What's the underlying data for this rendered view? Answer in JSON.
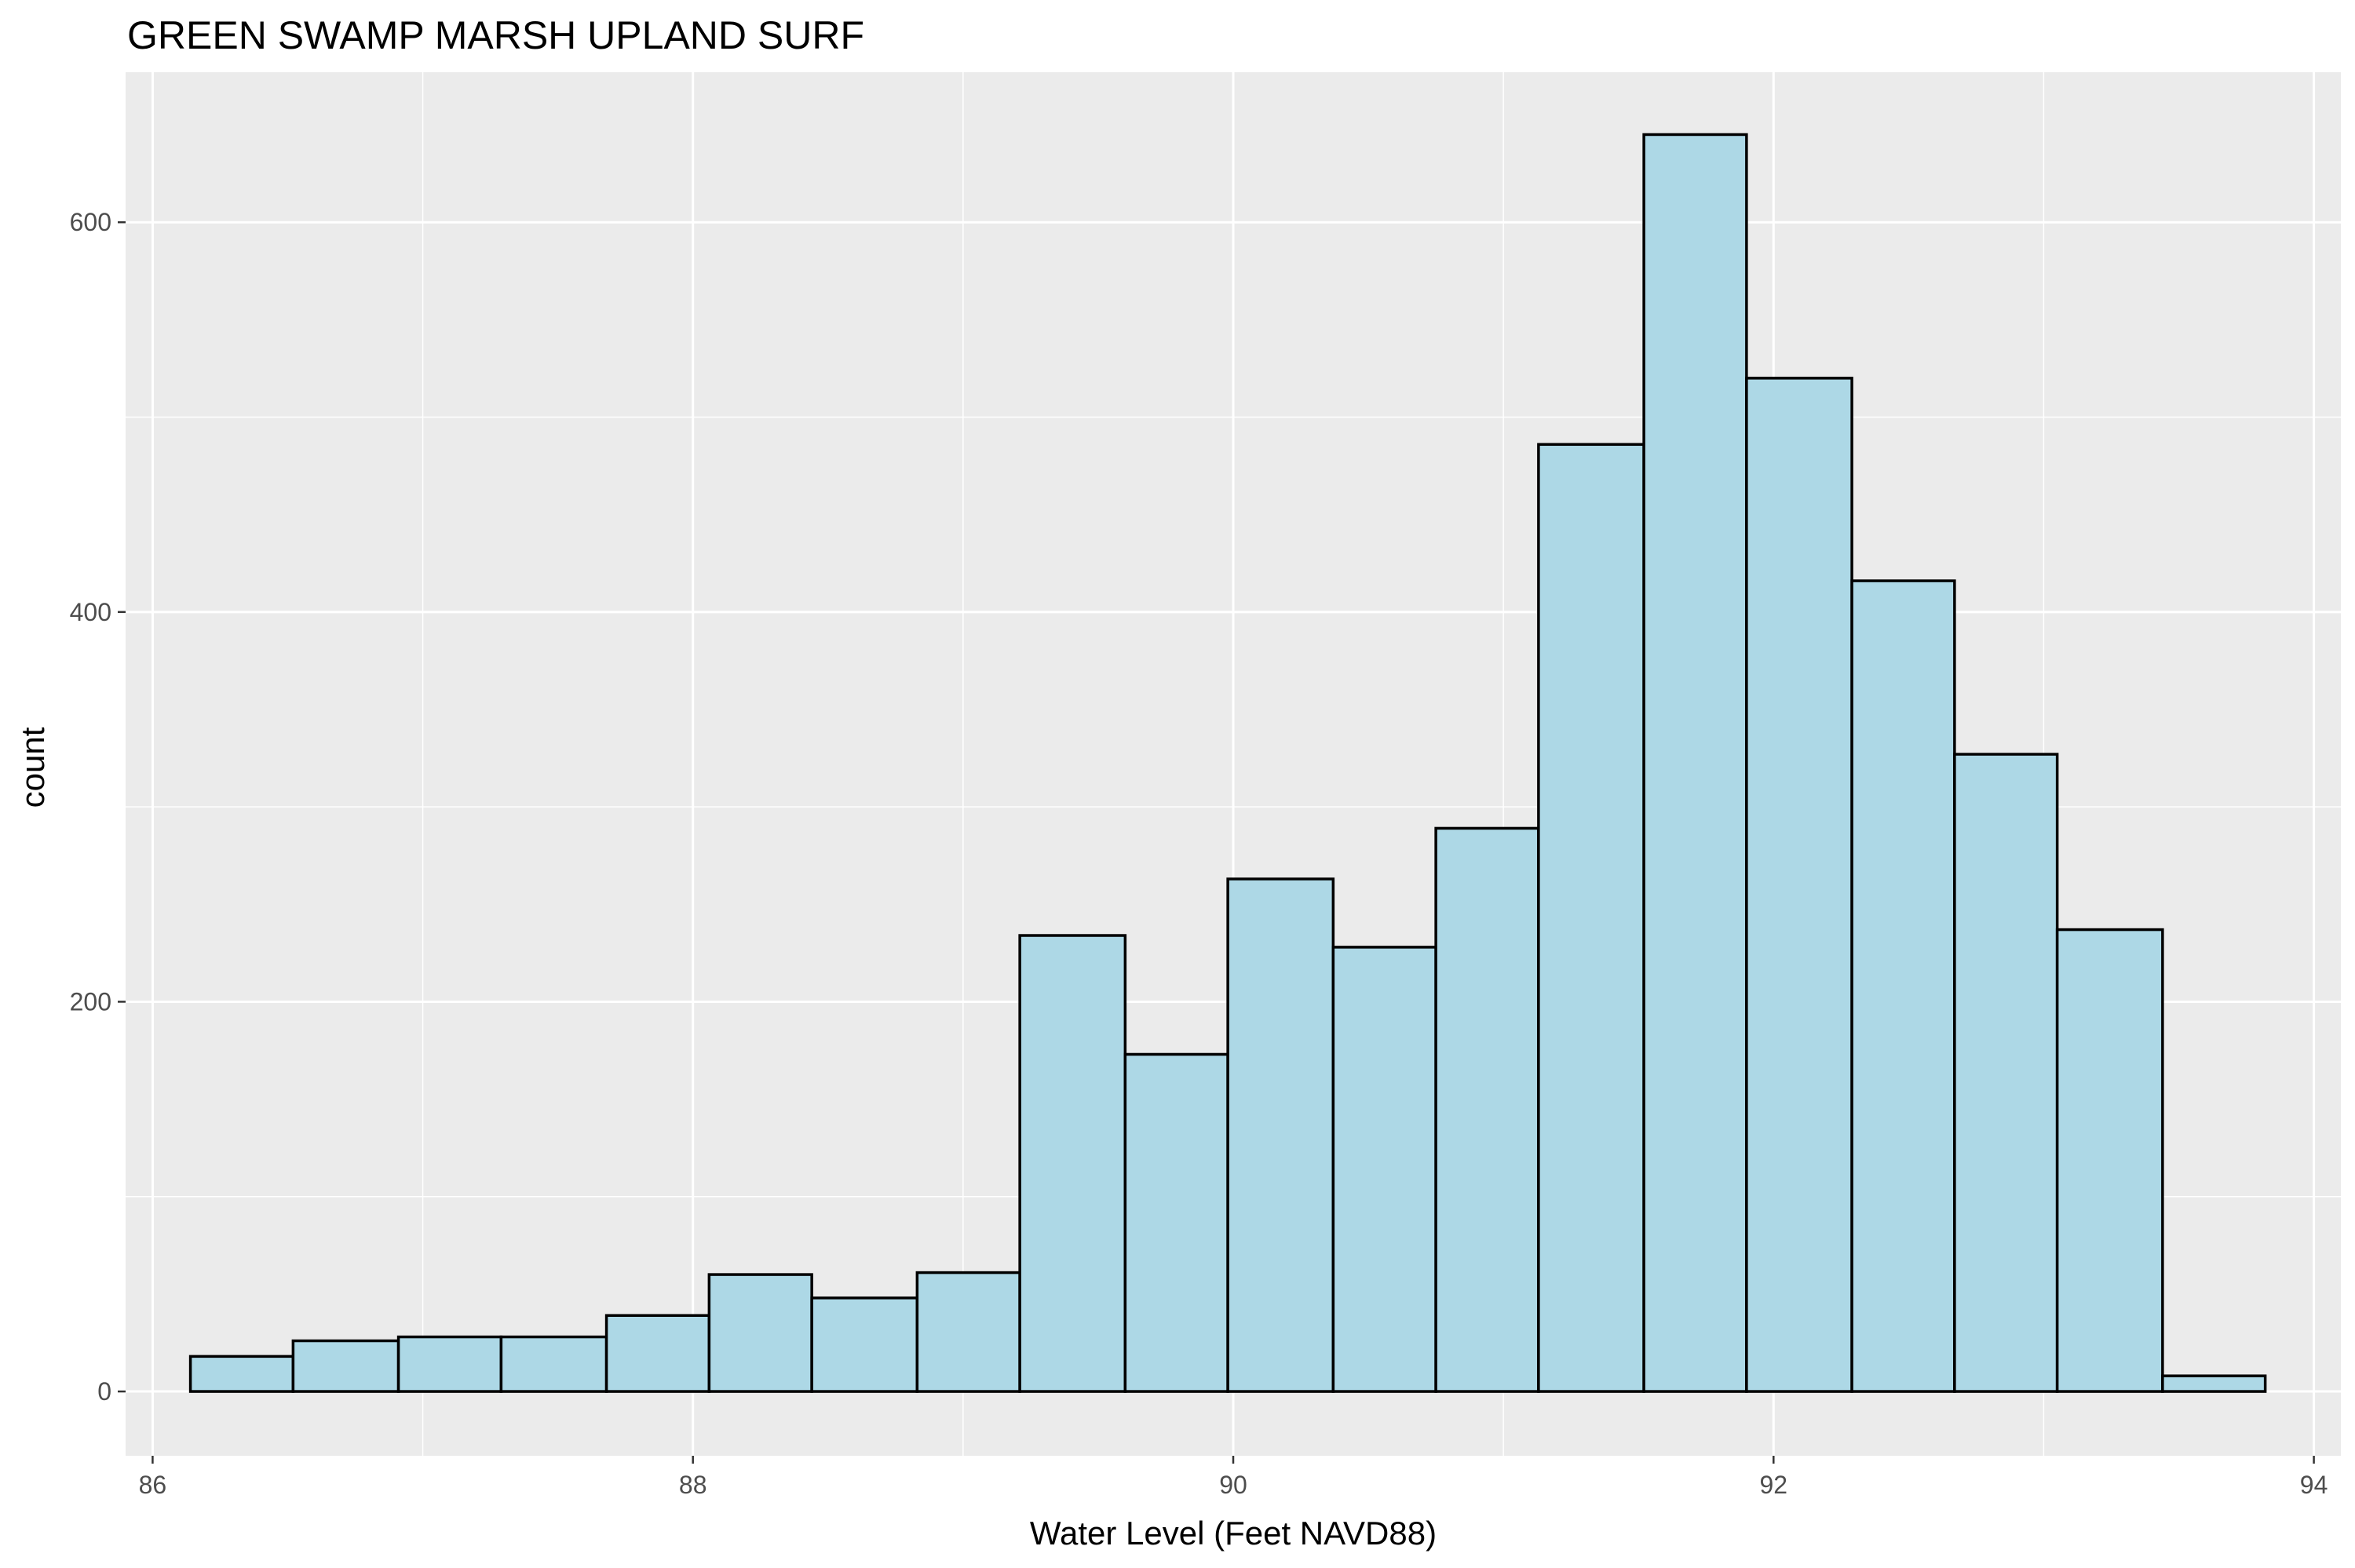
{
  "chart_data": {
    "type": "bar",
    "title": "GREEN SWAMP MARSH UPLAND SURF",
    "xlabel": "Water Level (Feet NAVD88)",
    "ylabel": "count",
    "xlim": [
      85.9,
      94.1
    ],
    "ylim": [
      -33,
      677
    ],
    "x_ticks": [
      86,
      88,
      90,
      92,
      94
    ],
    "y_ticks": [
      0,
      200,
      400,
      600
    ],
    "y_minor_ticks": [
      100,
      300,
      500
    ],
    "grid": true,
    "bins": [
      {
        "x0": 86.14,
        "x1": 86.52,
        "count": 18
      },
      {
        "x0": 86.52,
        "x1": 86.91,
        "count": 26
      },
      {
        "x0": 86.91,
        "x1": 87.29,
        "count": 28
      },
      {
        "x0": 87.29,
        "x1": 87.68,
        "count": 28
      },
      {
        "x0": 87.68,
        "x1": 88.06,
        "count": 39
      },
      {
        "x0": 88.06,
        "x1": 88.44,
        "count": 60
      },
      {
        "x0": 88.44,
        "x1": 88.83,
        "count": 48
      },
      {
        "x0": 88.83,
        "x1": 89.21,
        "count": 61
      },
      {
        "x0": 89.21,
        "x1": 89.6,
        "count": 234
      },
      {
        "x0": 89.6,
        "x1": 89.98,
        "count": 173
      },
      {
        "x0": 89.98,
        "x1": 90.37,
        "count": 263
      },
      {
        "x0": 90.37,
        "x1": 90.75,
        "count": 228
      },
      {
        "x0": 90.75,
        "x1": 91.13,
        "count": 289
      },
      {
        "x0": 91.13,
        "x1": 91.52,
        "count": 486
      },
      {
        "x0": 91.52,
        "x1": 91.9,
        "count": 645
      },
      {
        "x0": 91.9,
        "x1": 92.29,
        "count": 520
      },
      {
        "x0": 92.29,
        "x1": 92.67,
        "count": 416
      },
      {
        "x0": 92.67,
        "x1": 93.05,
        "count": 327
      },
      {
        "x0": 93.05,
        "x1": 93.44,
        "count": 237
      },
      {
        "x0": 93.44,
        "x1": 93.82,
        "count": 8
      }
    ],
    "colors": {
      "fill": "#add8e6",
      "stroke": "#000000",
      "panel": "#ebebeb",
      "grid": "#ffffff",
      "tick_text": "#4d4d4d"
    }
  }
}
